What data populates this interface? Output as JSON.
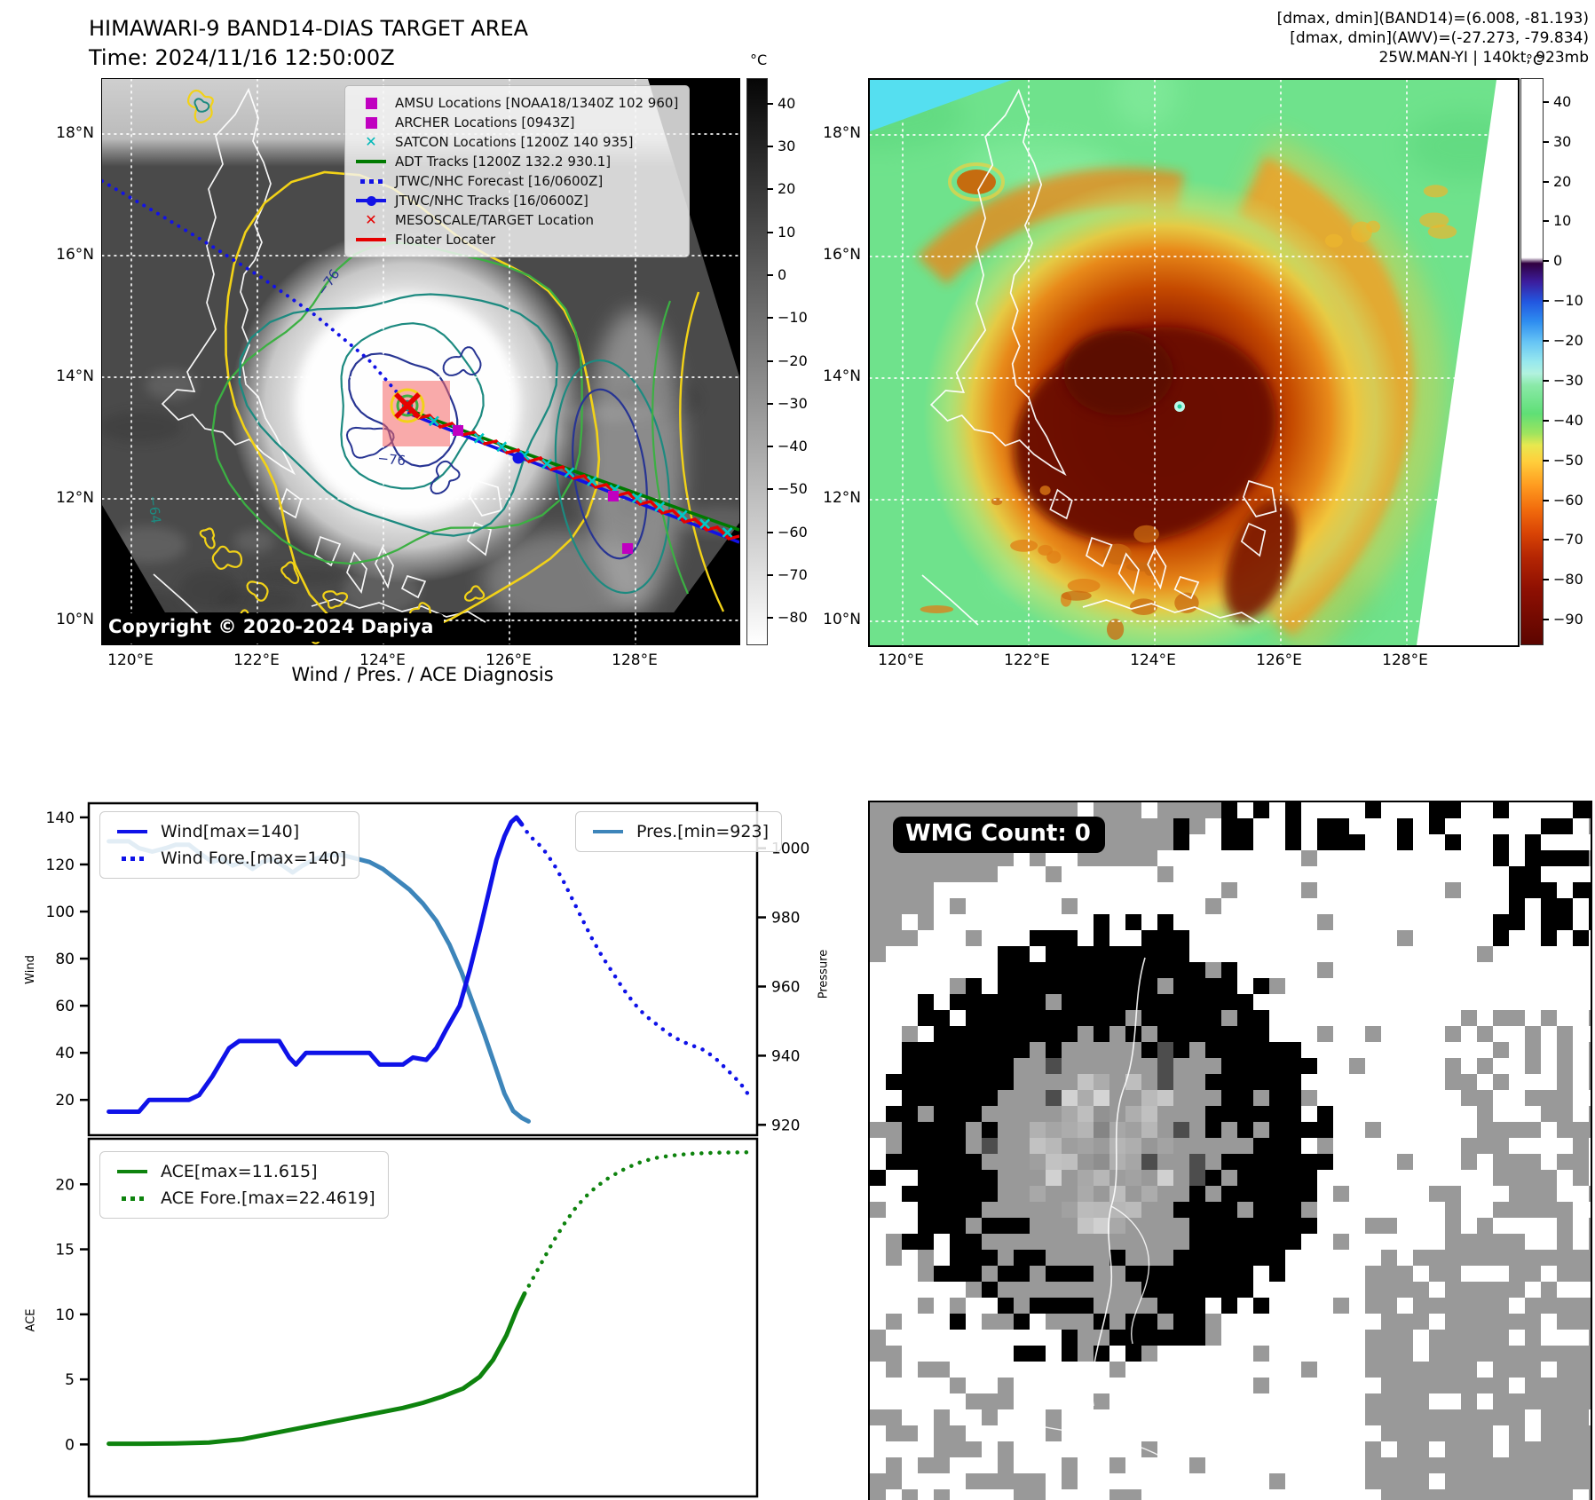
{
  "panels": {
    "target_area": {
      "title": "HIMAWARI-9 BAND14-DIAS TARGET AREA",
      "time_label": "Time: 2024/11/16 12:50:00Z",
      "copyright": "Copyright © 2020-2024 Dapiya",
      "x_ticks": [
        "120°E",
        "122°E",
        "124°E",
        "126°E",
        "128°E"
      ],
      "y_ticks": [
        "18°N",
        "16°N",
        "14°N",
        "12°N",
        "10°N"
      ],
      "contour_labels": [
        "−76",
        "−64",
        "−76"
      ],
      "colorbar": {
        "unit": "°C",
        "ticks": [
          "40",
          "30",
          "20",
          "10",
          "0",
          "−10",
          "−20",
          "−30",
          "−40",
          "−50",
          "−60",
          "−70",
          "−80"
        ]
      },
      "legend": [
        {
          "label": "AMSU Locations [NOAA18/1340Z 102 960]",
          "marker": "square",
          "color": "#c000c0"
        },
        {
          "label": "ARCHER Locations [0943Z]",
          "marker": "square",
          "color": "#c000c0"
        },
        {
          "label": "SATCON Locations [1200Z 140 935]",
          "marker": "x",
          "color": "#00b8b8"
        },
        {
          "label": "ADT Tracks [1200Z 132.2 930.1]",
          "marker": "line",
          "color": "#007a00"
        },
        {
          "label": "JTWC/NHC Forecast [16/0600Z]",
          "marker": "dotted",
          "color": "#1212e6"
        },
        {
          "label": "JTWC/NHC Tracks [16/0600Z]",
          "marker": "line-dot",
          "color": "#1212e6"
        },
        {
          "label": "MESOSCALE/TARGET Location",
          "marker": "x",
          "color": "#e60000"
        },
        {
          "label": "Floater Locater",
          "marker": "line",
          "color": "#e60000"
        }
      ]
    },
    "awv": {
      "header_lines": [
        "[dmax, dmin](BAND14)=(6.008, -81.193)",
        "[dmax, dmin](AWV)=(-27.273, -79.834)",
        "25W.MAN-YI | 140kt, 923mb"
      ],
      "x_ticks": [
        "120°E",
        "122°E",
        "124°E",
        "126°E",
        "128°E"
      ],
      "y_ticks": [
        "18°N",
        "16°N",
        "14°N",
        "12°N",
        "10°N"
      ],
      "colorbar": {
        "unit": "°C",
        "ticks": [
          "40",
          "30",
          "20",
          "10",
          "0",
          "−10",
          "−20",
          "−30",
          "−40",
          "−50",
          "−60",
          "−70",
          "−80",
          "−90"
        ]
      }
    },
    "wmg": {
      "badge": "WMG Count: 0"
    }
  },
  "chart_data": [
    {
      "type": "line",
      "title": "Wind / Pres. / ACE Diagnosis",
      "xlabel": "",
      "ylabel_left": "Wind",
      "ylabel_right": "Pressure",
      "ylim_left": [
        5,
        146
      ],
      "yticks_left": [
        20,
        40,
        60,
        80,
        100,
        120,
        140
      ],
      "ylim_right": [
        917,
        1013
      ],
      "yticks_right": [
        920,
        940,
        960,
        980,
        1000
      ],
      "grid": false,
      "legend_left": [
        {
          "label": "Wind[max=140]",
          "style": "solid",
          "color": "#0f12e8"
        },
        {
          "label": "Wind Fore.[max=140]",
          "style": "dotted",
          "color": "#0f12e8"
        }
      ],
      "legend_right": [
        {
          "label": "Pres.[min=923]",
          "style": "solid",
          "color": "#3d85ba"
        }
      ],
      "series": [
        {
          "name": "Wind",
          "axis": "left",
          "style": "solid",
          "color": "#0f12e8",
          "x": [
            0.03,
            0.075,
            0.09,
            0.15,
            0.165,
            0.185,
            0.21,
            0.225,
            0.285,
            0.3,
            0.31,
            0.325,
            0.42,
            0.435,
            0.47,
            0.485,
            0.505,
            0.52,
            0.535,
            0.555,
            0.57,
            0.585,
            0.6,
            0.61,
            0.622,
            0.632,
            0.64,
            0.648
          ],
          "y": [
            15,
            15,
            20,
            20,
            22,
            30,
            42,
            45,
            45,
            38,
            35,
            40,
            40,
            35,
            35,
            38,
            37,
            42,
            50,
            60,
            75,
            92,
            110,
            122,
            132,
            138,
            140,
            137
          ]
        },
        {
          "name": "Wind Fore.",
          "axis": "left",
          "style": "dotted",
          "color": "#0f12e8",
          "x": [
            0.648,
            0.66,
            0.672,
            0.684,
            0.696,
            0.71,
            0.724,
            0.738,
            0.752,
            0.768,
            0.784,
            0.8,
            0.816,
            0.832,
            0.85,
            0.868,
            0.886,
            0.904,
            0.922,
            0.94,
            0.958,
            0.975,
            0.99
          ],
          "y": [
            137,
            132,
            129,
            125,
            120,
            113,
            105,
            97,
            89,
            81,
            74,
            67,
            61,
            56,
            52,
            48,
            45,
            43,
            41,
            37,
            32,
            27,
            21
          ]
        },
        {
          "name": "Pres.",
          "axis": "right",
          "style": "solid",
          "color": "#3d85ba",
          "x": [
            0.03,
            0.06,
            0.075,
            0.095,
            0.115,
            0.13,
            0.15,
            0.17,
            0.185,
            0.2,
            0.215,
            0.23,
            0.245,
            0.26,
            0.275,
            0.29,
            0.305,
            0.32,
            0.34,
            0.36,
            0.38,
            0.4,
            0.42,
            0.44,
            0.46,
            0.48,
            0.5,
            0.52,
            0.54,
            0.558,
            0.575,
            0.592,
            0.608,
            0.622,
            0.635,
            0.648,
            0.658
          ],
          "y": [
            1002,
            1002,
            1000,
            999,
            1000,
            1001,
            1001,
            998,
            996,
            997,
            995,
            996,
            994,
            996,
            997,
            995,
            993,
            995,
            997,
            998,
            998,
            997,
            996,
            994,
            991,
            988,
            984,
            979,
            972,
            964,
            955,
            946,
            937,
            929,
            924,
            922,
            921
          ]
        }
      ]
    },
    {
      "type": "line",
      "title": "",
      "xlabel": "",
      "ylabel_left": "ACE",
      "ylim_left": [
        -4,
        23.5
      ],
      "yticks_left": [
        0,
        5,
        10,
        15,
        20
      ],
      "grid": false,
      "legend_left": [
        {
          "label": "ACE[max=11.615]",
          "style": "solid",
          "color": "#0e830e"
        },
        {
          "label": "ACE Fore.[max=22.4619]",
          "style": "dotted",
          "color": "#0e830e"
        }
      ],
      "series": [
        {
          "name": "ACE",
          "axis": "left",
          "style": "solid",
          "color": "#0e830e",
          "x": [
            0.03,
            0.08,
            0.13,
            0.18,
            0.23,
            0.27,
            0.31,
            0.35,
            0.39,
            0.43,
            0.47,
            0.5,
            0.53,
            0.56,
            0.585,
            0.605,
            0.625,
            0.64,
            0.652
          ],
          "y": [
            0.05,
            0.05,
            0.08,
            0.15,
            0.4,
            0.8,
            1.2,
            1.6,
            2.0,
            2.4,
            2.8,
            3.2,
            3.7,
            4.3,
            5.2,
            6.5,
            8.4,
            10.3,
            11.6
          ]
        },
        {
          "name": "ACE Fore.",
          "axis": "left",
          "style": "dotted",
          "color": "#0e830e",
          "x": [
            0.652,
            0.665,
            0.68,
            0.695,
            0.712,
            0.73,
            0.75,
            0.772,
            0.795,
            0.82,
            0.845,
            0.87,
            0.9,
            0.935,
            0.965,
            0.99
          ],
          "y": [
            11.6,
            12.8,
            14.2,
            15.6,
            17.0,
            18.3,
            19.4,
            20.3,
            21.0,
            21.6,
            22.0,
            22.2,
            22.35,
            22.42,
            22.45,
            22.46
          ]
        }
      ]
    }
  ]
}
